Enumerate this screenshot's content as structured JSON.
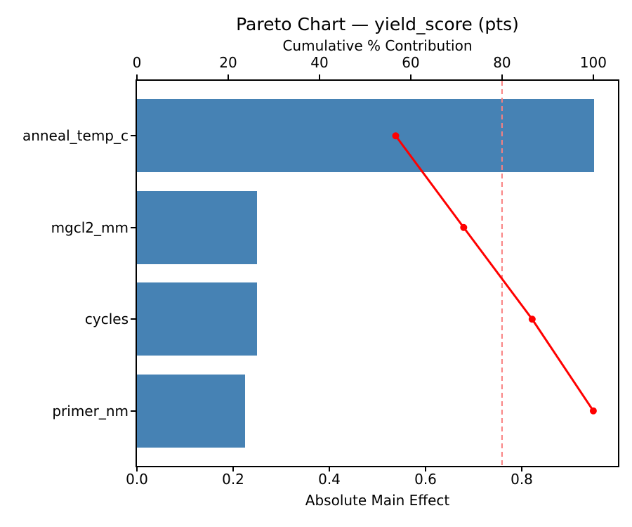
{
  "chart": {
    "title": "Pareto Chart — yield_score (pts)",
    "top_axis_label": "Cumulative % Contribution",
    "bottom_axis_label": "Absolute Main Effect"
  },
  "chart_data": {
    "type": "bar",
    "subtype": "pareto-horizontal",
    "title": "Pareto Chart — yield_score (pts)",
    "categories": [
      "anneal_temp_c",
      "mgcl2_mm",
      "cycles",
      "primer_nm"
    ],
    "series": [
      {
        "name": "Absolute Main Effect",
        "kind": "barh",
        "values": [
          0.95,
          0.25,
          0.25,
          0.225
        ]
      },
      {
        "name": "Cumulative % Contribution",
        "kind": "line",
        "values": [
          56.7,
          71.6,
          86.6,
          100.0
        ]
      }
    ],
    "threshold": {
      "value": 80,
      "axis": "top",
      "style": "dashed"
    },
    "bottom_axis": {
      "label": "Absolute Main Effect",
      "tick_labels": [
        "0.0",
        "0.2",
        "0.4",
        "0.6",
        "0.8"
      ],
      "tick_values": [
        0,
        0.2,
        0.4,
        0.6,
        0.8
      ],
      "range": [
        0,
        1.0
      ]
    },
    "top_axis": {
      "label": "Cumulative % Contribution",
      "tick_labels": [
        "0",
        "20",
        "40",
        "60",
        "80",
        "100"
      ],
      "tick_values": [
        0,
        20,
        40,
        60,
        80,
        100
      ],
      "range": [
        0,
        105.4
      ]
    },
    "legend": "none",
    "grid": false,
    "colors": {
      "bar": "#4682b4",
      "cumulative_line": "#ff0000",
      "threshold_line": "#f98080",
      "text": "#000000"
    }
  }
}
